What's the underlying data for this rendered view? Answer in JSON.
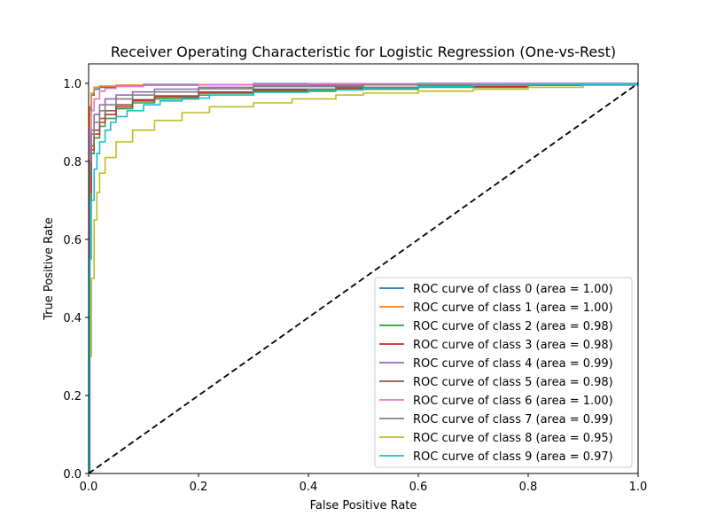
{
  "chart_data": {
    "type": "line",
    "title": "Receiver Operating Characteristic for Logistic Regression (One-vs-Rest)",
    "xlabel": "False Positive Rate",
    "ylabel": "True Positive Rate",
    "xlim": [
      0,
      1
    ],
    "ylim": [
      0,
      1.05
    ],
    "xticks": [
      0.0,
      0.2,
      0.4,
      0.6,
      0.8,
      1.0
    ],
    "xtick_labels": [
      "0.0",
      "0.2",
      "0.4",
      "0.6",
      "0.8",
      "1.0"
    ],
    "yticks": [
      0.0,
      0.2,
      0.4,
      0.6,
      0.8,
      1.0
    ],
    "ytick_labels": [
      "0.0",
      "0.2",
      "0.4",
      "0.6",
      "0.8",
      "1.0"
    ],
    "grid": false,
    "legend_position": "lower-right",
    "reference_line": {
      "x": [
        0,
        1
      ],
      "y": [
        0,
        1
      ],
      "color": "#000000",
      "style": "dashed"
    },
    "series": [
      {
        "name": "ROC curve of class 0 (area = 1.00)",
        "color": "#1f77b4",
        "x": [
          0,
          0.002,
          0.005,
          0.01,
          0.02,
          0.05,
          0.1,
          0.3,
          0.6,
          1.0
        ],
        "y": [
          0,
          0.93,
          0.97,
          0.985,
          0.99,
          0.995,
          0.997,
          0.999,
          1.0,
          1.0
        ]
      },
      {
        "name": "ROC curve of class 1 (area = 1.00)",
        "color": "#ff7f0e",
        "x": [
          0,
          0.002,
          0.005,
          0.01,
          0.02,
          0.05,
          0.2,
          0.6,
          0.7,
          1.0
        ],
        "y": [
          0,
          0.94,
          0.975,
          0.99,
          0.993,
          0.995,
          0.996,
          0.997,
          0.999,
          1.0
        ]
      },
      {
        "name": "ROC curve of class 2 (area = 0.98)",
        "color": "#2ca02c",
        "x": [
          0,
          0.002,
          0.005,
          0.01,
          0.02,
          0.03,
          0.05,
          0.08,
          0.12,
          0.2,
          0.3,
          0.45,
          0.6,
          0.8,
          1.0
        ],
        "y": [
          0,
          0.7,
          0.82,
          0.86,
          0.89,
          0.91,
          0.935,
          0.95,
          0.96,
          0.97,
          0.98,
          0.985,
          0.99,
          0.995,
          1.0
        ]
      },
      {
        "name": "ROC curve of class 3 (area = 0.98)",
        "color": "#d62728",
        "x": [
          0,
          0.002,
          0.005,
          0.01,
          0.02,
          0.03,
          0.05,
          0.08,
          0.12,
          0.2,
          0.3,
          0.45,
          0.6,
          0.8,
          1.0
        ],
        "y": [
          0,
          0.72,
          0.83,
          0.87,
          0.9,
          0.92,
          0.94,
          0.955,
          0.965,
          0.975,
          0.983,
          0.988,
          0.992,
          0.996,
          1.0
        ]
      },
      {
        "name": "ROC curve of class 4 (area = 0.99)",
        "color": "#9467bd",
        "x": [
          0,
          0.002,
          0.005,
          0.01,
          0.02,
          0.03,
          0.05,
          0.08,
          0.12,
          0.2,
          0.3,
          0.5,
          1.0
        ],
        "y": [
          0,
          0.8,
          0.88,
          0.92,
          0.945,
          0.96,
          0.97,
          0.978,
          0.985,
          0.99,
          0.995,
          0.998,
          1.0
        ]
      },
      {
        "name": "ROC curve of class 5 (area = 0.98)",
        "color": "#8c564b",
        "x": [
          0,
          0.002,
          0.005,
          0.01,
          0.02,
          0.03,
          0.05,
          0.08,
          0.12,
          0.2,
          0.3,
          0.45,
          0.6,
          0.75,
          0.85,
          1.0
        ],
        "y": [
          0,
          0.76,
          0.84,
          0.88,
          0.91,
          0.93,
          0.945,
          0.958,
          0.968,
          0.978,
          0.985,
          0.99,
          0.994,
          0.996,
          0.998,
          1.0
        ]
      },
      {
        "name": "ROC curve of class 6 (area = 1.00)",
        "color": "#e377c2",
        "x": [
          0,
          0.002,
          0.005,
          0.01,
          0.02,
          0.03,
          0.05,
          0.1,
          0.2,
          0.4,
          1.0
        ],
        "y": [
          0,
          0.88,
          0.93,
          0.96,
          0.98,
          0.987,
          0.992,
          0.995,
          0.997,
          0.999,
          1.0
        ]
      },
      {
        "name": "ROC curve of class 7 (area = 0.99)",
        "color": "#7f7f7f",
        "x": [
          0,
          0.002,
          0.005,
          0.01,
          0.02,
          0.03,
          0.05,
          0.08,
          0.12,
          0.2,
          0.3,
          0.5,
          1.0
        ],
        "y": [
          0,
          0.8,
          0.87,
          0.9,
          0.93,
          0.945,
          0.96,
          0.97,
          0.978,
          0.986,
          0.992,
          0.996,
          1.0
        ]
      },
      {
        "name": "ROC curve of class 8 (area = 0.95)",
        "color": "#bcbd22",
        "x": [
          0,
          0.002,
          0.005,
          0.01,
          0.015,
          0.02,
          0.03,
          0.05,
          0.08,
          0.12,
          0.17,
          0.22,
          0.3,
          0.37,
          0.45,
          0.5,
          0.6,
          0.7,
          0.8,
          0.9,
          1.0
        ],
        "y": [
          0,
          0.3,
          0.5,
          0.65,
          0.72,
          0.77,
          0.81,
          0.85,
          0.88,
          0.905,
          0.925,
          0.94,
          0.95,
          0.96,
          0.97,
          0.975,
          0.98,
          0.985,
          0.99,
          0.995,
          1.0
        ]
      },
      {
        "name": "ROC curve of class 9 (area = 0.97)",
        "color": "#17becf",
        "x": [
          0,
          0.002,
          0.005,
          0.01,
          0.015,
          0.02,
          0.03,
          0.04,
          0.05,
          0.07,
          0.1,
          0.13,
          0.17,
          0.22,
          0.3,
          0.4,
          0.5,
          0.6,
          0.7,
          0.8,
          1.0
        ],
        "y": [
          0,
          0.55,
          0.7,
          0.78,
          0.82,
          0.85,
          0.88,
          0.9,
          0.915,
          0.93,
          0.945,
          0.955,
          0.962,
          0.97,
          0.977,
          0.983,
          0.988,
          0.992,
          0.995,
          0.997,
          1.0
        ]
      }
    ]
  }
}
